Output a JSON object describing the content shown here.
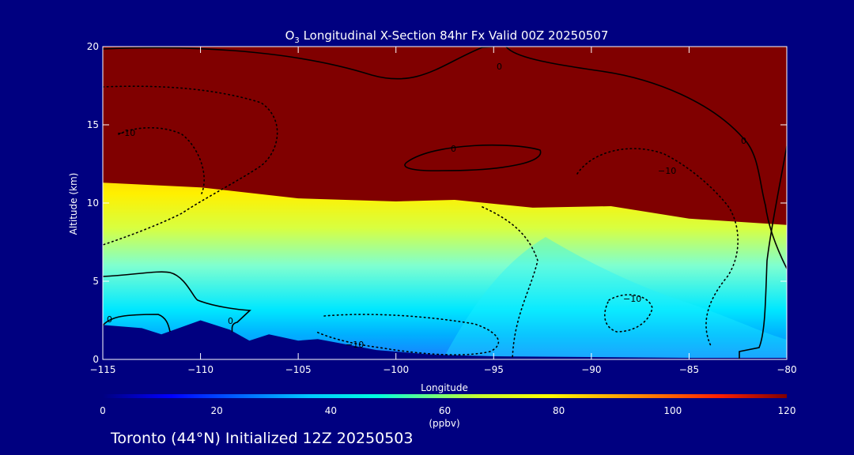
{
  "chart_data": {
    "type": "heatmap",
    "title_prefix": "O",
    "title_sub": "3",
    "title_rest": " Longitudinal X-Section 84hr  Fx Valid 00Z 20250507",
    "xlabel": "Longitude",
    "ylabel": "Altitude (km)",
    "xlim": [
      -115,
      -80
    ],
    "ylim": [
      0,
      20
    ],
    "x_ticks": [
      -115,
      -110,
      -105,
      -100,
      -95,
      -90,
      -85,
      -80
    ],
    "x_tick_labels": [
      "−115",
      "−110",
      "−105",
      "−100",
      "−95",
      "−90",
      "−85",
      "−80"
    ],
    "y_ticks": [
      0,
      5,
      10,
      15,
      20
    ],
    "y_tick_labels": [
      "0",
      "5",
      "10",
      "15",
      "20"
    ],
    "colorbar": {
      "min": 0,
      "max": 120,
      "ticks": [
        0,
        20,
        40,
        60,
        80,
        100,
        120
      ],
      "tick_labels": [
        "0",
        "20",
        "40",
        "60",
        "80",
        "100",
        "120"
      ],
      "unit": "(ppbv)"
    },
    "ozone_max_altitude_km": [
      {
        "lon": -115,
        "alt": 11.3
      },
      {
        "lon": -110,
        "alt": 11.0
      },
      {
        "lon": -105,
        "alt": 10.3
      },
      {
        "lon": -100,
        "alt": 10.1
      },
      {
        "lon": -97,
        "alt": 10.2
      },
      {
        "lon": -93,
        "alt": 9.7
      },
      {
        "lon": -89,
        "alt": 9.8
      },
      {
        "lon": -85,
        "alt": 9.0
      },
      {
        "lon": -80,
        "alt": 8.6
      }
    ],
    "terrain_km": [
      {
        "lon": -115,
        "alt": 2.2
      },
      {
        "lon": -113,
        "alt": 2.0
      },
      {
        "lon": -112,
        "alt": 1.6
      },
      {
        "lon": -110,
        "alt": 2.5
      },
      {
        "lon": -108.5,
        "alt": 1.9
      },
      {
        "lon": -107.5,
        "alt": 1.2
      },
      {
        "lon": -106.5,
        "alt": 1.6
      },
      {
        "lon": -105,
        "alt": 1.2
      },
      {
        "lon": -104,
        "alt": 1.3
      },
      {
        "lon": -101,
        "alt": 0.6
      },
      {
        "lon": -98,
        "alt": 0.3
      },
      {
        "lon": -95,
        "alt": 0.2
      },
      {
        "lon": -90,
        "alt": 0.15
      },
      {
        "lon": -85,
        "alt": 0.1
      },
      {
        "lon": -80,
        "alt": 0.1
      }
    ],
    "contour_labels": [
      "0",
      "0",
      "0",
      "0",
      "0",
      "−10",
      "−10",
      "−10",
      "−10"
    ]
  },
  "footer": {
    "text": "Toronto (44°N) Initialized 12Z 20250503"
  },
  "colors": {
    "background": "#000080",
    "terrain": "#000080",
    "max_ozone": "#800000"
  }
}
